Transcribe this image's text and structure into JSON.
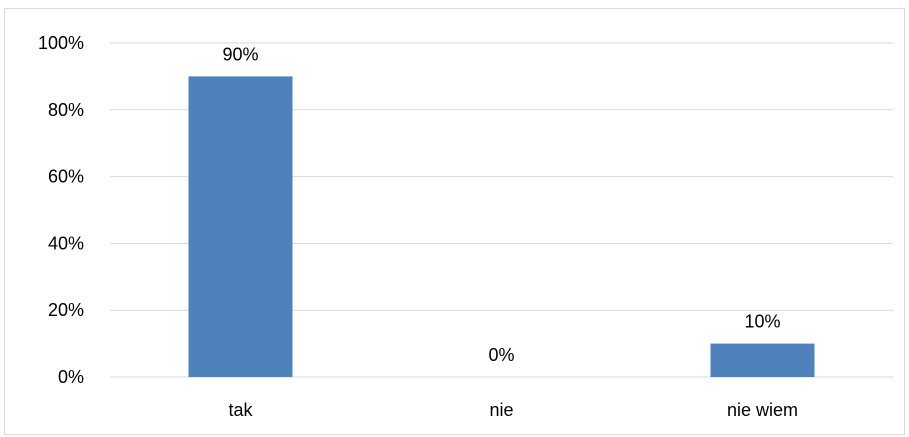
{
  "chart_data": {
    "type": "bar",
    "title": "",
    "xlabel": "",
    "ylabel": "",
    "categories": [
      "tak",
      "nie",
      "nie wiem"
    ],
    "values": [
      90,
      0,
      10
    ],
    "data_labels": [
      "90%",
      "0%",
      "10%"
    ],
    "ylim": [
      0,
      100
    ],
    "y_ticks": [
      0,
      20,
      40,
      60,
      80,
      100
    ],
    "y_tick_labels": [
      "0%",
      "20%",
      "40%",
      "60%",
      "80%",
      "100%"
    ],
    "grid": true,
    "legend": "none",
    "bar_color": "#4f81bd",
    "grid_color": "#d9d9d9"
  }
}
